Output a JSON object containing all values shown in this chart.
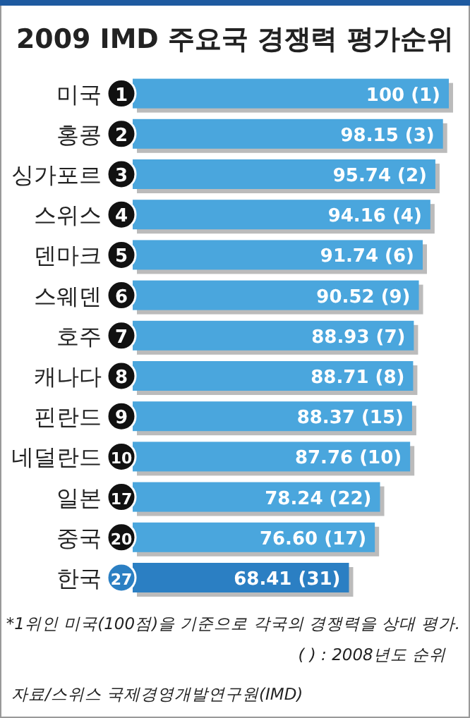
{
  "chart_data": {
    "type": "bar",
    "orientation": "horizontal",
    "title": "2009 IMD 주요국 경쟁력 평가순위",
    "categories": [
      "미국",
      "홍콩",
      "싱가포르",
      "스위스",
      "덴마크",
      "스웨덴",
      "호주",
      "캐나다",
      "핀란드",
      "네덜란드",
      "일본",
      "중국",
      "한국"
    ],
    "values": [
      100,
      98.15,
      95.74,
      94.16,
      91.74,
      90.52,
      88.93,
      88.71,
      88.37,
      87.76,
      78.24,
      76.6,
      68.41
    ],
    "value_labels": [
      "100 (1)",
      "98.15 (3)",
      "95.74 (2)",
      "94.16 (4)",
      "91.74 (6)",
      "90.52 (9)",
      "88.93 (7)",
      "88.71 (8)",
      "88.37 (15)",
      "87.76 (10)",
      "78.24 (22)",
      "76.60 (17)",
      "68.41 (31)"
    ],
    "colors": [
      "#4aa6dd",
      "#4aa6dd",
      "#4aa6dd",
      "#4aa6dd",
      "#4aa6dd",
      "#4aa6dd",
      "#4aa6dd",
      "#4aa6dd",
      "#4aa6dd",
      "#4aa6dd",
      "#4aa6dd",
      "#4aa6dd",
      "#2b7fc3"
    ],
    "annotations": [
      {
        "text": "1",
        "y": "미국"
      },
      {
        "text": "2",
        "y": "홍콩"
      },
      {
        "text": "3",
        "y": "싱가포르"
      },
      {
        "text": "4",
        "y": "스위스"
      },
      {
        "text": "5",
        "y": "덴마크"
      },
      {
        "text": "6",
        "y": "스웨덴"
      },
      {
        "text": "7",
        "y": "호주"
      },
      {
        "text": "8",
        "y": "캐나다"
      },
      {
        "text": "9",
        "y": "핀란드"
      },
      {
        "text": "10",
        "y": "네덜란드"
      },
      {
        "text": "17",
        "y": "일본"
      },
      {
        "text": "20",
        "y": "중국"
      },
      {
        "text": "27",
        "y": "한국"
      },
      "*1위인 미국(100점)을 기준으로 각국의 경쟁력을 상대 평가.",
      "( ) : 2008년도 순위",
      "자료/스위스 국제경영개발연구원(IMD)"
    ]
  }
}
